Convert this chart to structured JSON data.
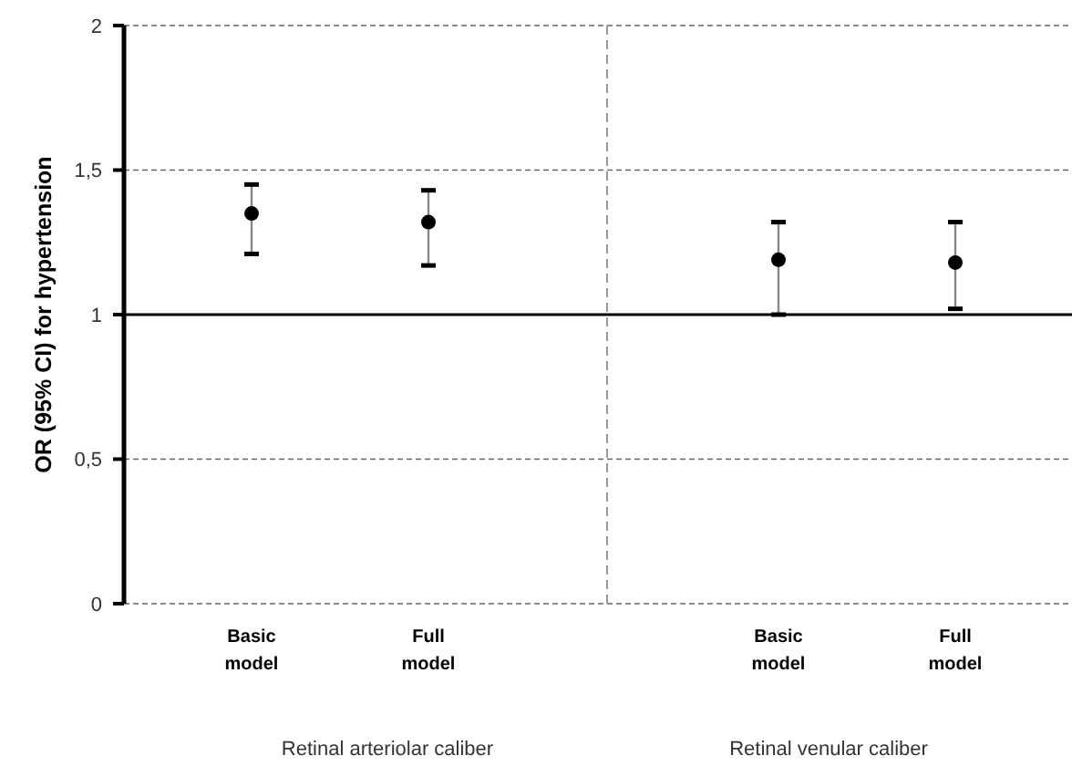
{
  "chart_data": [
    {
      "type": "scatter",
      "ylabel": "OR (95% CI) for hypertension",
      "xlabel": "Retinal arteriolar caliber",
      "categories": [
        "Basic\nmodel",
        "Full\nmodel"
      ],
      "series": [
        {
          "color": "#000000",
          "values": [
            1.35,
            1.32
          ],
          "errors": [
            [
              1.21,
              1.45
            ],
            [
              1.17,
              1.43
            ]
          ]
        }
      ],
      "ylim": [
        0,
        2
      ],
      "yticks": [
        {
          "value": 0,
          "label": "0"
        },
        {
          "value": 0.5,
          "label": "0,5"
        },
        {
          "value": 1,
          "label": "1"
        },
        {
          "value": 1.5,
          "label": "1,5"
        },
        {
          "value": 2,
          "label": "2"
        }
      ],
      "grid": "y",
      "marker": "circle",
      "ref_lines": [
        {
          "axis": "y",
          "value": 1,
          "color": "#000000",
          "line_style": "solid"
        }
      ]
    },
    {
      "type": "scatter",
      "xlabel": "Retinal venular caliber",
      "categories": [
        "Basic\nmodel",
        "Full\nmodel"
      ],
      "series": [
        {
          "color": "#000000",
          "values": [
            1.19,
            1.18
          ],
          "errors": [
            [
              1.0,
              1.32
            ],
            [
              1.02,
              1.32
            ]
          ]
        }
      ],
      "ylim": [
        0,
        2
      ],
      "yticks": [
        0,
        0.5,
        1,
        1.5,
        2
      ],
      "grid": "y",
      "marker": "circle",
      "tick_labels": "x",
      "ref_lines": [
        {
          "axis": "y",
          "value": 1,
          "color": "#000000",
          "line_style": "solid"
        }
      ]
    }
  ]
}
